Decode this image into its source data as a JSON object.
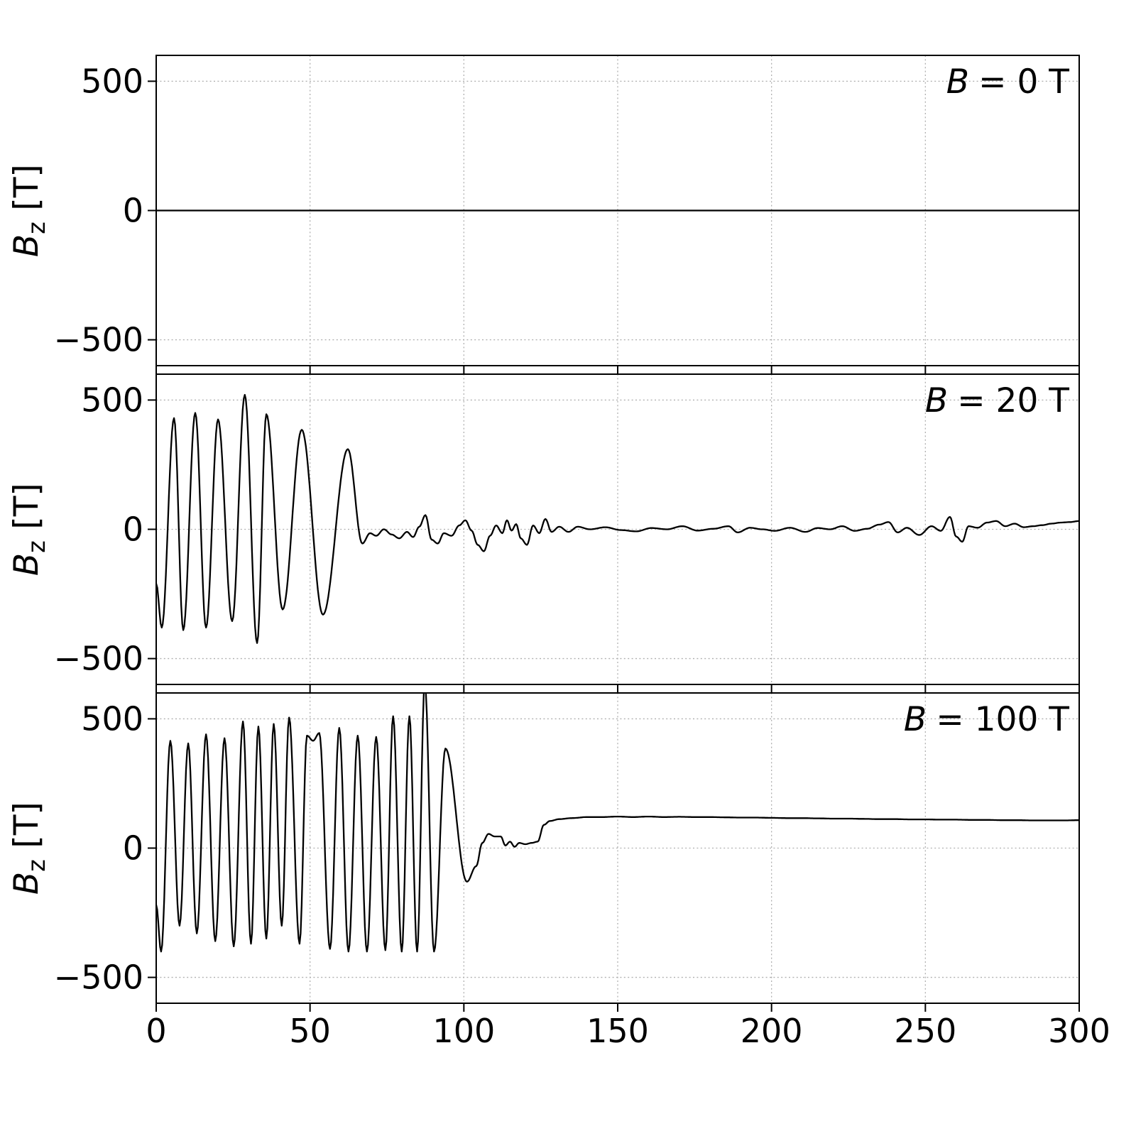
{
  "figure": {
    "background": "#ffffff",
    "text_color": "#000000"
  },
  "chart_data": {
    "type": "line",
    "title": "",
    "xlabel": "",
    "ylabel": "Bz [T]",
    "ylabel_var": "B",
    "ylabel_sub": "z",
    "ylabel_unit": "[T]",
    "xlim": [
      0,
      300
    ],
    "ylim": [
      -600,
      600
    ],
    "xticks": [
      0,
      50,
      100,
      150,
      200,
      250,
      300
    ],
    "yticks": [
      -500,
      0,
      500
    ],
    "grid": "dotted",
    "grid_color": "#b0b0b0",
    "line_color": "#000000",
    "legend_position": "none",
    "interpolation": "cosine-through-extrema",
    "panels": [
      {
        "label_var": "B",
        "label_rest": "= 0 T",
        "points": [
          [
            0,
            0
          ],
          [
            300,
            0
          ]
        ]
      },
      {
        "label_var": "B",
        "label_rest": "= 20 T",
        "points": [
          [
            0,
            -210
          ],
          [
            1.8,
            -380
          ],
          [
            5.8,
            430
          ],
          [
            8.8,
            -390
          ],
          [
            12.7,
            450
          ],
          [
            16.2,
            -380
          ],
          [
            20.1,
            425
          ],
          [
            24.7,
            -355
          ],
          [
            28.8,
            520
          ],
          [
            32.8,
            -440
          ],
          [
            35.8,
            445
          ],
          [
            41.1,
            -310
          ],
          [
            47.3,
            385
          ],
          [
            54.2,
            -330
          ],
          [
            62.3,
            310
          ],
          [
            67,
            -55
          ],
          [
            69.5,
            -15
          ],
          [
            71.5,
            -25
          ],
          [
            74,
            0
          ],
          [
            76.5,
            -20
          ],
          [
            79,
            -35
          ],
          [
            81.5,
            -10
          ],
          [
            83.5,
            -30
          ],
          [
            85.5,
            10
          ],
          [
            87.5,
            55
          ],
          [
            89.5,
            -40
          ],
          [
            91.5,
            -55
          ],
          [
            93.5,
            -15
          ],
          [
            96,
            -25
          ],
          [
            98.5,
            15
          ],
          [
            100.5,
            35
          ],
          [
            102.5,
            -5
          ],
          [
            104.5,
            -60
          ],
          [
            106.5,
            -85
          ],
          [
            108.5,
            -25
          ],
          [
            110.5,
            15
          ],
          [
            112.5,
            -15
          ],
          [
            114,
            35
          ],
          [
            115.5,
            -5
          ],
          [
            117,
            20
          ],
          [
            118.5,
            -35
          ],
          [
            120.5,
            -60
          ],
          [
            122.5,
            15
          ],
          [
            124.5,
            -15
          ],
          [
            126.5,
            40
          ],
          [
            128.5,
            -10
          ],
          [
            131,
            10
          ],
          [
            134,
            -10
          ],
          [
            137,
            10
          ],
          [
            141,
            0
          ],
          [
            146,
            8
          ],
          [
            151,
            -3
          ],
          [
            156,
            -8
          ],
          [
            161,
            5
          ],
          [
            166,
            0
          ],
          [
            171,
            12
          ],
          [
            176,
            -5
          ],
          [
            181,
            2
          ],
          [
            186,
            12
          ],
          [
            189,
            -12
          ],
          [
            193,
            6
          ],
          [
            197,
            0
          ],
          [
            201,
            -6
          ],
          [
            206,
            6
          ],
          [
            211,
            -10
          ],
          [
            215,
            5
          ],
          [
            219,
            0
          ],
          [
            223,
            12
          ],
          [
            227,
            -6
          ],
          [
            231,
            2
          ],
          [
            235,
            18
          ],
          [
            238,
            28
          ],
          [
            241,
            -12
          ],
          [
            244,
            6
          ],
          [
            248,
            -22
          ],
          [
            252,
            12
          ],
          [
            255,
            -6
          ],
          [
            258,
            48
          ],
          [
            260,
            -28
          ],
          [
            262,
            -48
          ],
          [
            264,
            12
          ],
          [
            267,
            6
          ],
          [
            270,
            26
          ],
          [
            273,
            32
          ],
          [
            276,
            12
          ],
          [
            279,
            22
          ],
          [
            282,
            8
          ],
          [
            285,
            12
          ],
          [
            288,
            16
          ],
          [
            291,
            22
          ],
          [
            294,
            26
          ],
          [
            297,
            28
          ],
          [
            300,
            32
          ]
        ]
      },
      {
        "label_var": "B",
        "label_rest": "= 100 T",
        "points": [
          [
            0,
            -220
          ],
          [
            1.6,
            -400
          ],
          [
            4.6,
            415
          ],
          [
            7.6,
            -300
          ],
          [
            10.4,
            405
          ],
          [
            13.2,
            -330
          ],
          [
            16.2,
            440
          ],
          [
            19.2,
            -360
          ],
          [
            22.2,
            425
          ],
          [
            25.2,
            -380
          ],
          [
            28.2,
            490
          ],
          [
            30.8,
            -370
          ],
          [
            33.2,
            470
          ],
          [
            35.8,
            -350
          ],
          [
            38.2,
            480
          ],
          [
            40.8,
            -300
          ],
          [
            43.2,
            505
          ],
          [
            46.6,
            -370
          ],
          [
            49,
            435
          ],
          [
            51,
            415
          ],
          [
            53,
            445
          ],
          [
            56.5,
            -390
          ],
          [
            59.5,
            465
          ],
          [
            62.5,
            -400
          ],
          [
            65.5,
            435
          ],
          [
            68.5,
            -400
          ],
          [
            71.5,
            430
          ],
          [
            74.5,
            -395
          ],
          [
            77,
            510
          ],
          [
            79.8,
            -400
          ],
          [
            82.3,
            510
          ],
          [
            84.8,
            -400
          ],
          [
            87.3,
            640
          ],
          [
            90.3,
            -400
          ],
          [
            94,
            385
          ],
          [
            101,
            -130
          ],
          [
            104,
            -70
          ],
          [
            106,
            20
          ],
          [
            108,
            55
          ],
          [
            110,
            45
          ],
          [
            112,
            45
          ],
          [
            113.5,
            10
          ],
          [
            115,
            25
          ],
          [
            116.5,
            5
          ],
          [
            118,
            20
          ],
          [
            120,
            15
          ],
          [
            122,
            20
          ],
          [
            124,
            25
          ],
          [
            126,
            90
          ],
          [
            128,
            105
          ],
          [
            131,
            112
          ],
          [
            135,
            116
          ],
          [
            140,
            120
          ],
          [
            145,
            120
          ],
          [
            150,
            122
          ],
          [
            155,
            120
          ],
          [
            160,
            122
          ],
          [
            165,
            120
          ],
          [
            170,
            121
          ],
          [
            175,
            120
          ],
          [
            180,
            120
          ],
          [
            185,
            119
          ],
          [
            190,
            118
          ],
          [
            195,
            118
          ],
          [
            200,
            117
          ],
          [
            205,
            116
          ],
          [
            210,
            116
          ],
          [
            215,
            115
          ],
          [
            220,
            114
          ],
          [
            225,
            114
          ],
          [
            230,
            113
          ],
          [
            235,
            112
          ],
          [
            240,
            112
          ],
          [
            245,
            111
          ],
          [
            250,
            111
          ],
          [
            255,
            110
          ],
          [
            260,
            110
          ],
          [
            265,
            109
          ],
          [
            270,
            109
          ],
          [
            275,
            108
          ],
          [
            280,
            108
          ],
          [
            285,
            107
          ],
          [
            290,
            107
          ],
          [
            295,
            107
          ],
          [
            300,
            108
          ]
        ]
      }
    ]
  }
}
